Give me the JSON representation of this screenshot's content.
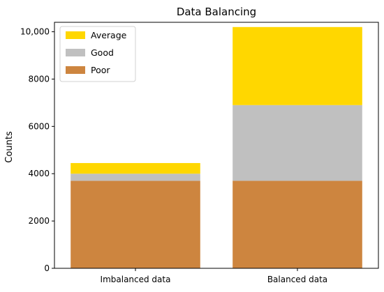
{
  "chart_data": {
    "type": "bar",
    "stacked": true,
    "title": "Data Balancing",
    "xlabel": "",
    "ylabel": "Counts",
    "categories": [
      "Imbalanced data",
      "Balanced data"
    ],
    "series": [
      {
        "name": "Poor",
        "values": [
          3700,
          3700
        ],
        "color": "#CD853F"
      },
      {
        "name": "Good",
        "values": [
          300,
          3200
        ],
        "color": "#C0C0C0"
      },
      {
        "name": "Average",
        "values": [
          450,
          3300
        ],
        "color": "#FFD700"
      }
    ],
    "ylim": [
      0,
      10400
    ],
    "yticks": [
      0,
      2000,
      4000,
      6000,
      8000,
      10000
    ],
    "ytick_labels": [
      "0",
      "2000",
      "4000",
      "6000",
      "8000",
      "10,000"
    ],
    "legend": {
      "placement": "top-left",
      "order": [
        "Average",
        "Good",
        "Poor"
      ]
    },
    "grid": false
  }
}
